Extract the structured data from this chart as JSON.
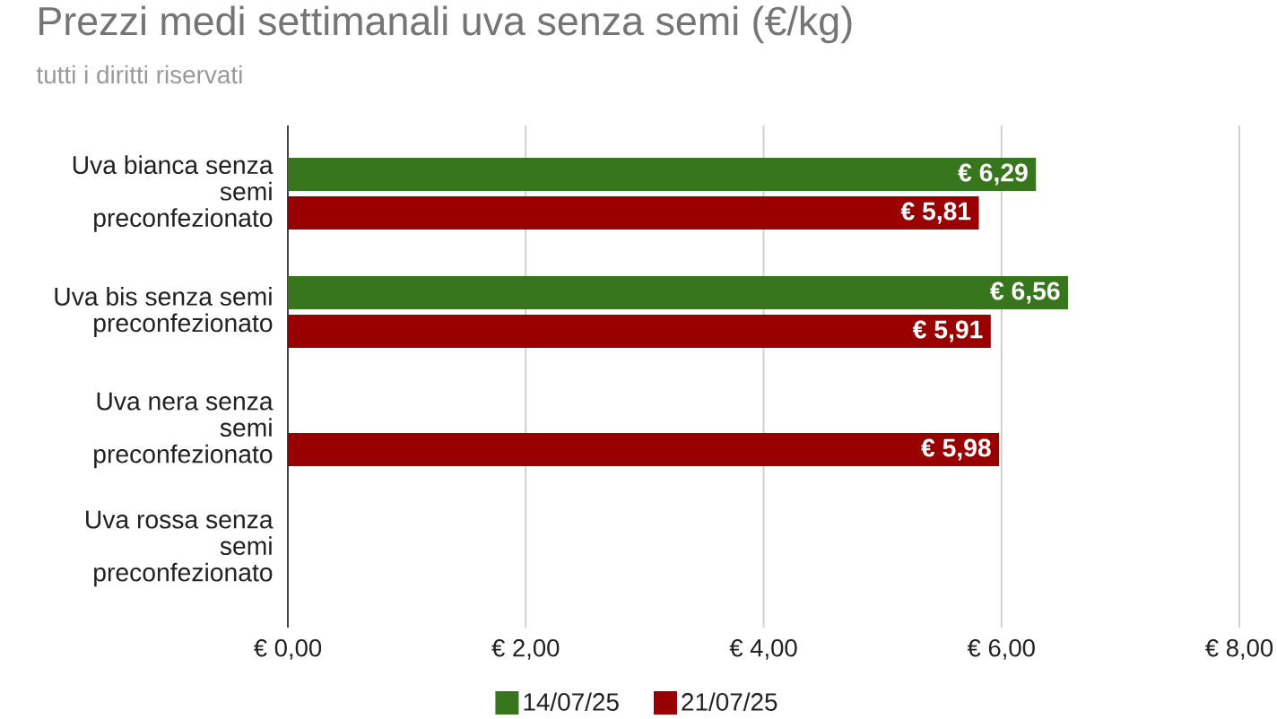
{
  "chart_data": {
    "type": "bar",
    "orientation": "horizontal",
    "title": "Prezzi medi settimanali uva senza semi (€/kg)",
    "subtitle": "tutti i diritti riservati",
    "categories": [
      "Uva bianca senza semi preconfezionato",
      "Uva bis senza semi preconfezionato",
      "Uva nera senza semi preconfezionato",
      "Uva rossa senza semi preconfezionato"
    ],
    "series": [
      {
        "name": "14/07/25",
        "color": "#38761d",
        "values": [
          6.29,
          6.56,
          null,
          null
        ],
        "value_labels": [
          "€ 6,29",
          "€ 6,56",
          null,
          null
        ]
      },
      {
        "name": "21/07/25",
        "color": "#990000",
        "values": [
          5.81,
          5.91,
          5.98,
          null
        ],
        "value_labels": [
          "€ 5,81",
          "€ 5,91",
          "€ 5,98",
          null
        ]
      }
    ],
    "xlim": [
      0,
      8
    ],
    "xticks": [
      {
        "value": 0,
        "label": "€ 0,00"
      },
      {
        "value": 2,
        "label": "€ 2,00"
      },
      {
        "value": 4,
        "label": "€ 4,00"
      },
      {
        "value": 6,
        "label": "€ 6,00"
      },
      {
        "value": 8,
        "label": "€ 8,00"
      }
    ],
    "grid": "x",
    "legend": "bottom"
  }
}
